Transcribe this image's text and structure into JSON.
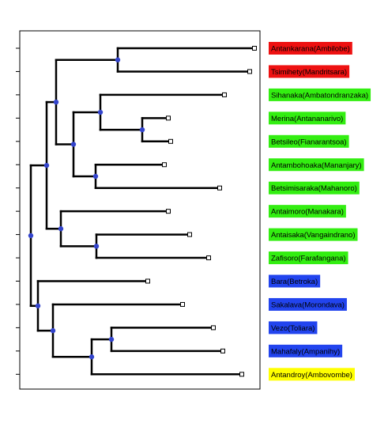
{
  "tree": {
    "leaves": [
      {
        "name": "Antankarana(Ambilobe)",
        "group": "red",
        "branch_end": 322
      },
      {
        "name": "Tsimihety(Mandritsara)",
        "group": "red",
        "branch_end": 316
      },
      {
        "name": "Sihanaka(Ambatondranzaka)",
        "group": "green",
        "branch_end": 284
      },
      {
        "name": "Merina(Antananarivo)",
        "group": "green",
        "branch_end": 213
      },
      {
        "name": "Betsileo(Fianarantsoa)",
        "group": "green",
        "branch_end": 216
      },
      {
        "name": "Antambohoaka(Mananjary)",
        "group": "green",
        "branch_end": 208
      },
      {
        "name": "Betsimisaraka(Mahanoro)",
        "group": "green",
        "branch_end": 278
      },
      {
        "name": "Antaimoro(Manakara)",
        "group": "green",
        "branch_end": 213
      },
      {
        "name": "Antaisaka(Vangaindrano)",
        "group": "green",
        "branch_end": 240
      },
      {
        "name": "Zafisoro(Farafangana)",
        "group": "green",
        "branch_end": 264
      },
      {
        "name": "Bara(Betroka)",
        "group": "blue",
        "branch_end": 187
      },
      {
        "name": "Sakalava(Morondava)",
        "group": "blue",
        "branch_end": 231
      },
      {
        "name": "Vezo(Toliara)",
        "group": "blue",
        "branch_end": 270
      },
      {
        "name": "Mahafaly(Ampanihy)",
        "group": "blue",
        "branch_end": 282
      },
      {
        "name": "Antandroy(Ambovombe)",
        "group": "yellow",
        "branch_end": 306
      }
    ],
    "group_colors": {
      "red": "#ee1111",
      "green": "#33ee11",
      "blue": "#2244ee",
      "yellow": "#ffff00"
    },
    "node_color": "#3344cc"
  }
}
